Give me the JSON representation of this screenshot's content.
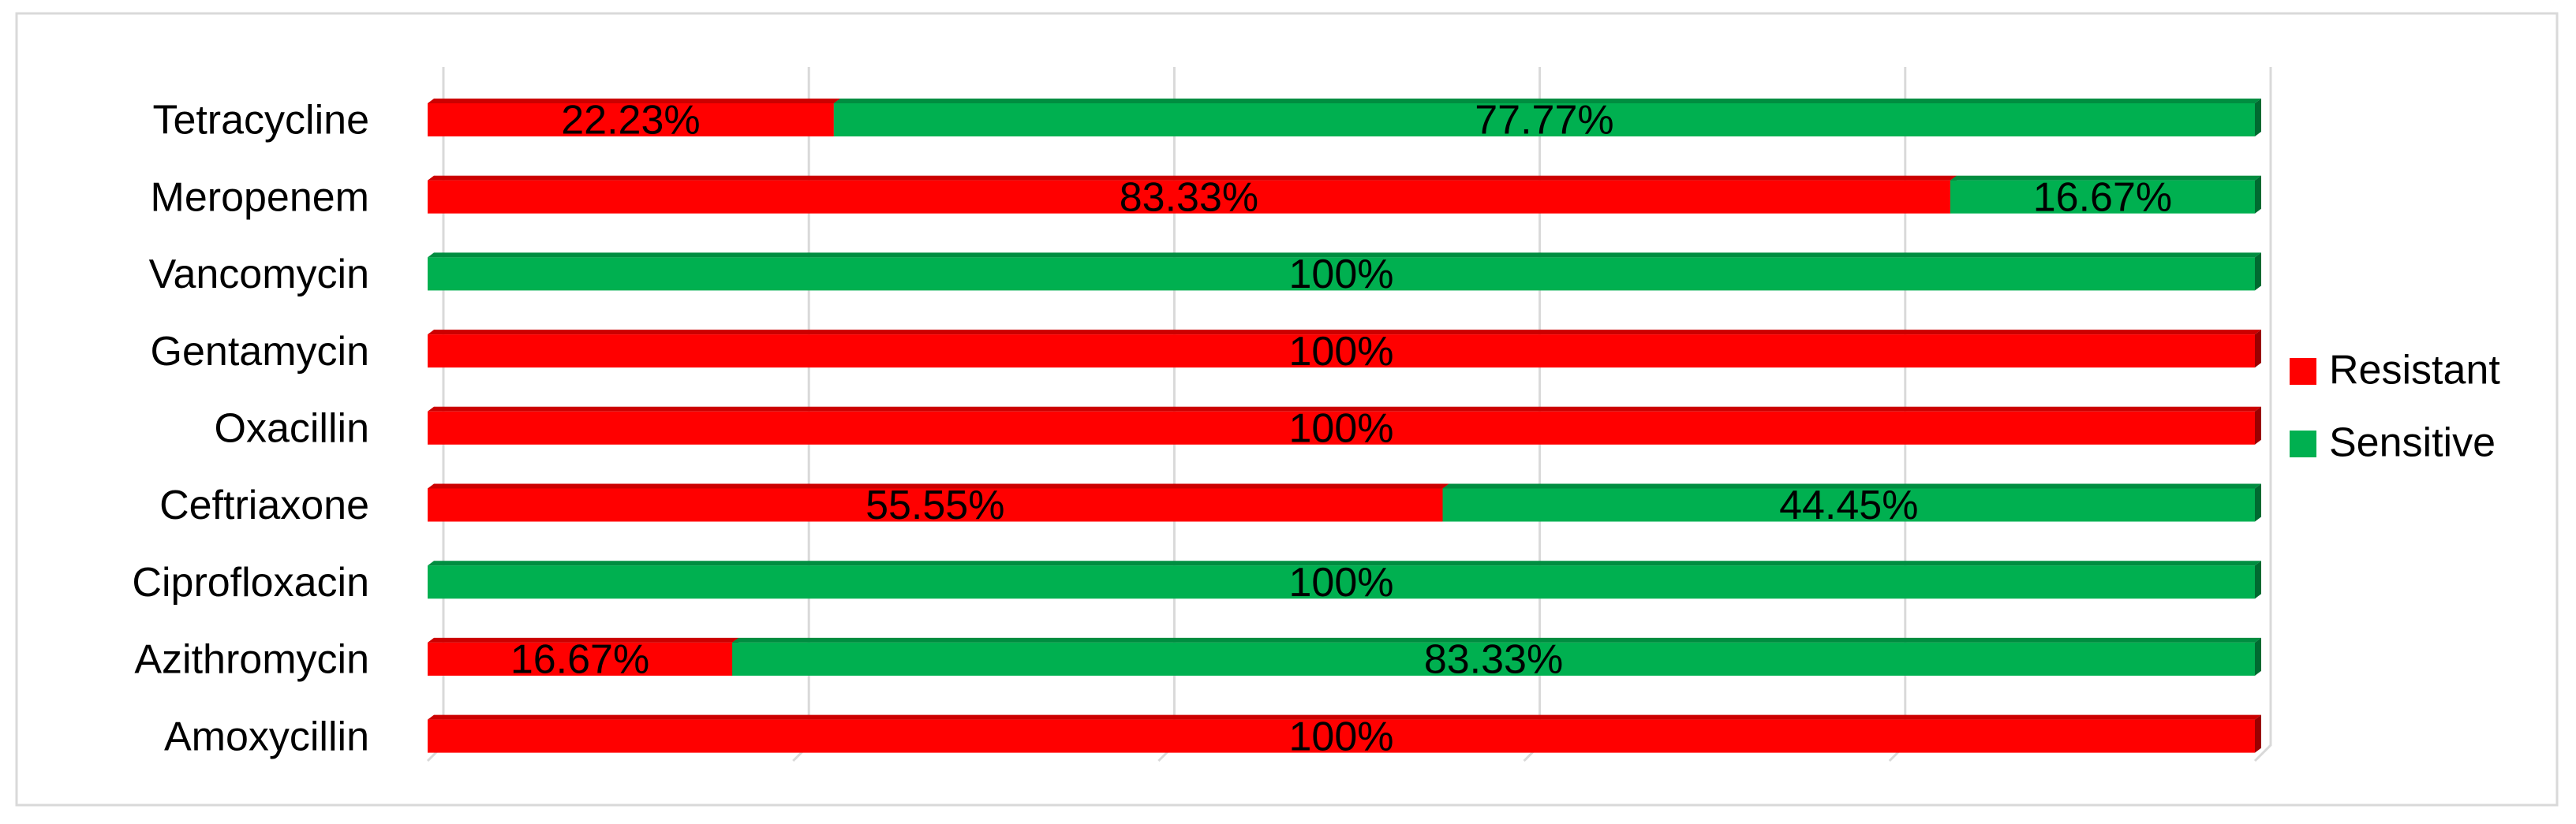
{
  "chart_data": {
    "type": "stacked_barh",
    "categories": [
      "Tetracycline",
      "Meropenem",
      "Vancomycin",
      "Gentamycin",
      "Oxacillin",
      "Ceftriaxone",
      "Ciprofloxacin",
      "Azithromycin",
      "Amoxycillin"
    ],
    "series": [
      {
        "name": "Resistant",
        "color": "#ff0000",
        "values": [
          22.23,
          83.33,
          0,
          100,
          100,
          55.55,
          0,
          16.67,
          100
        ],
        "value_labels": [
          "22.23%",
          "83.33%",
          null,
          "100%",
          "100%",
          "55.55%",
          null,
          "16.67%",
          "100%"
        ]
      },
      {
        "name": "Sensitive",
        "color": "#00b050",
        "values": [
          77.77,
          16.67,
          100,
          0,
          0,
          44.45,
          100,
          83.33,
          0
        ],
        "value_labels": [
          "77.77%",
          "16.67%",
          "100%",
          null,
          null,
          "44.45%",
          "100%",
          "83.33%",
          null
        ]
      }
    ],
    "xlim": [
      0,
      100
    ],
    "xticks": [
      0,
      20,
      40,
      60,
      80,
      100
    ],
    "grid": true,
    "legend": "right"
  }
}
